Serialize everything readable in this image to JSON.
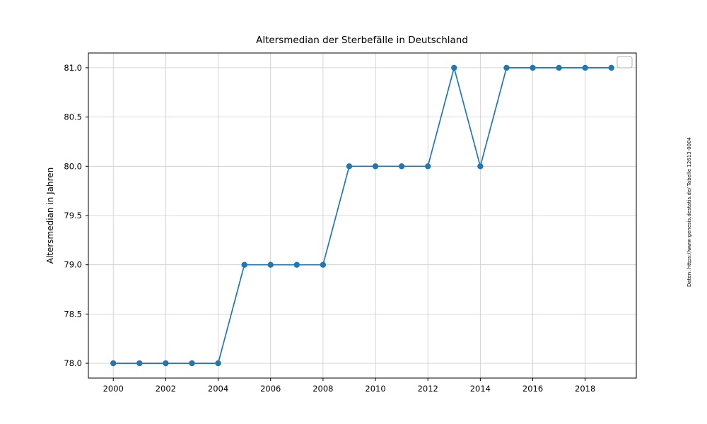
{
  "chart_data": {
    "type": "line",
    "title": "Altersmedian der Sterbefälle in Deutschland",
    "xlabel": "",
    "ylabel": "Altersmedian in Jahren",
    "source_note": "Daten: https://www-genesis.destatis.de/ Tabelle 12613-0004",
    "x": [
      2000,
      2001,
      2002,
      2003,
      2004,
      2005,
      2006,
      2007,
      2008,
      2009,
      2010,
      2011,
      2012,
      2013,
      2014,
      2015,
      2016,
      2017,
      2018,
      2019
    ],
    "values": [
      78,
      78,
      78,
      78,
      78,
      79,
      79,
      79,
      79,
      80,
      80,
      80,
      80,
      81,
      80,
      81,
      81,
      81,
      81,
      81
    ],
    "xticks": [
      2000,
      2002,
      2004,
      2006,
      2008,
      2010,
      2012,
      2014,
      2016,
      2018
    ],
    "yticks": [
      78.0,
      78.5,
      79.0,
      79.5,
      80.0,
      80.5,
      81.0
    ],
    "ytick_labels": [
      "78.0",
      "78.5",
      "79.0",
      "79.5",
      "80.0",
      "80.5",
      "81.0"
    ],
    "xlim": [
      1999.05,
      2019.95
    ],
    "ylim": [
      77.85,
      81.15
    ],
    "grid": true,
    "legend_position": "upper right",
    "legend_entries": [],
    "line_color": "#1f77b4",
    "grid_color": "#cccccc",
    "frame_color": "#000000"
  }
}
